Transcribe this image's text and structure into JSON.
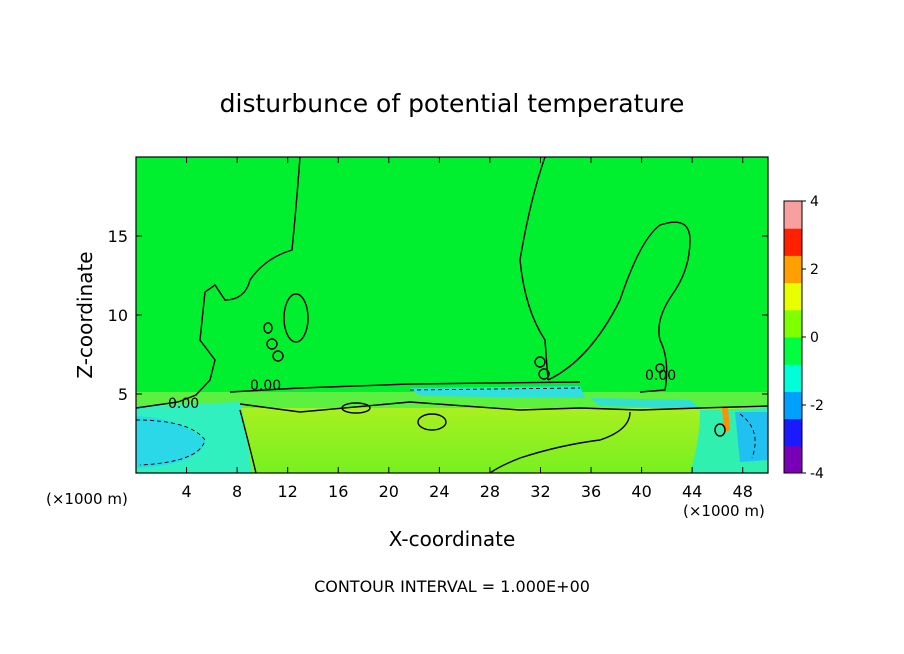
{
  "chart_data": {
    "type": "heatmap",
    "title": "disturbunce of potential temperature",
    "xlabel": "X-coordinate",
    "ylabel": "Z-coordinate",
    "x_unit_left": "(×1000 m)",
    "x_unit_right": "(×1000 m)",
    "xlim": [
      0,
      50
    ],
    "ylim": [
      0,
      20
    ],
    "xticks": [
      4,
      8,
      12,
      16,
      20,
      24,
      28,
      32,
      36,
      40,
      44,
      48
    ],
    "yticks": [
      5,
      10,
      15
    ],
    "colorbar": {
      "range": [
        -4,
        4
      ],
      "ticks": [
        4,
        2,
        0,
        -2,
        -4
      ],
      "colors": [
        "#7a00b8",
        "#1a1aff",
        "#00a0ff",
        "#00ffd8",
        "#00ff40",
        "#80ff00",
        "#e8ff00",
        "#ffa000",
        "#ff2000",
        "#f8a0a0"
      ]
    },
    "contour_label": "0.00",
    "footer": "CONTOUR INTERVAL = 1.000E+00",
    "fields": {
      "background": "#00f030",
      "inversion_band": "#55f040",
      "surface_warm": "#8cf020",
      "cold_pool": "#30f0c0",
      "cold_core": "#20c8f0"
    }
  }
}
